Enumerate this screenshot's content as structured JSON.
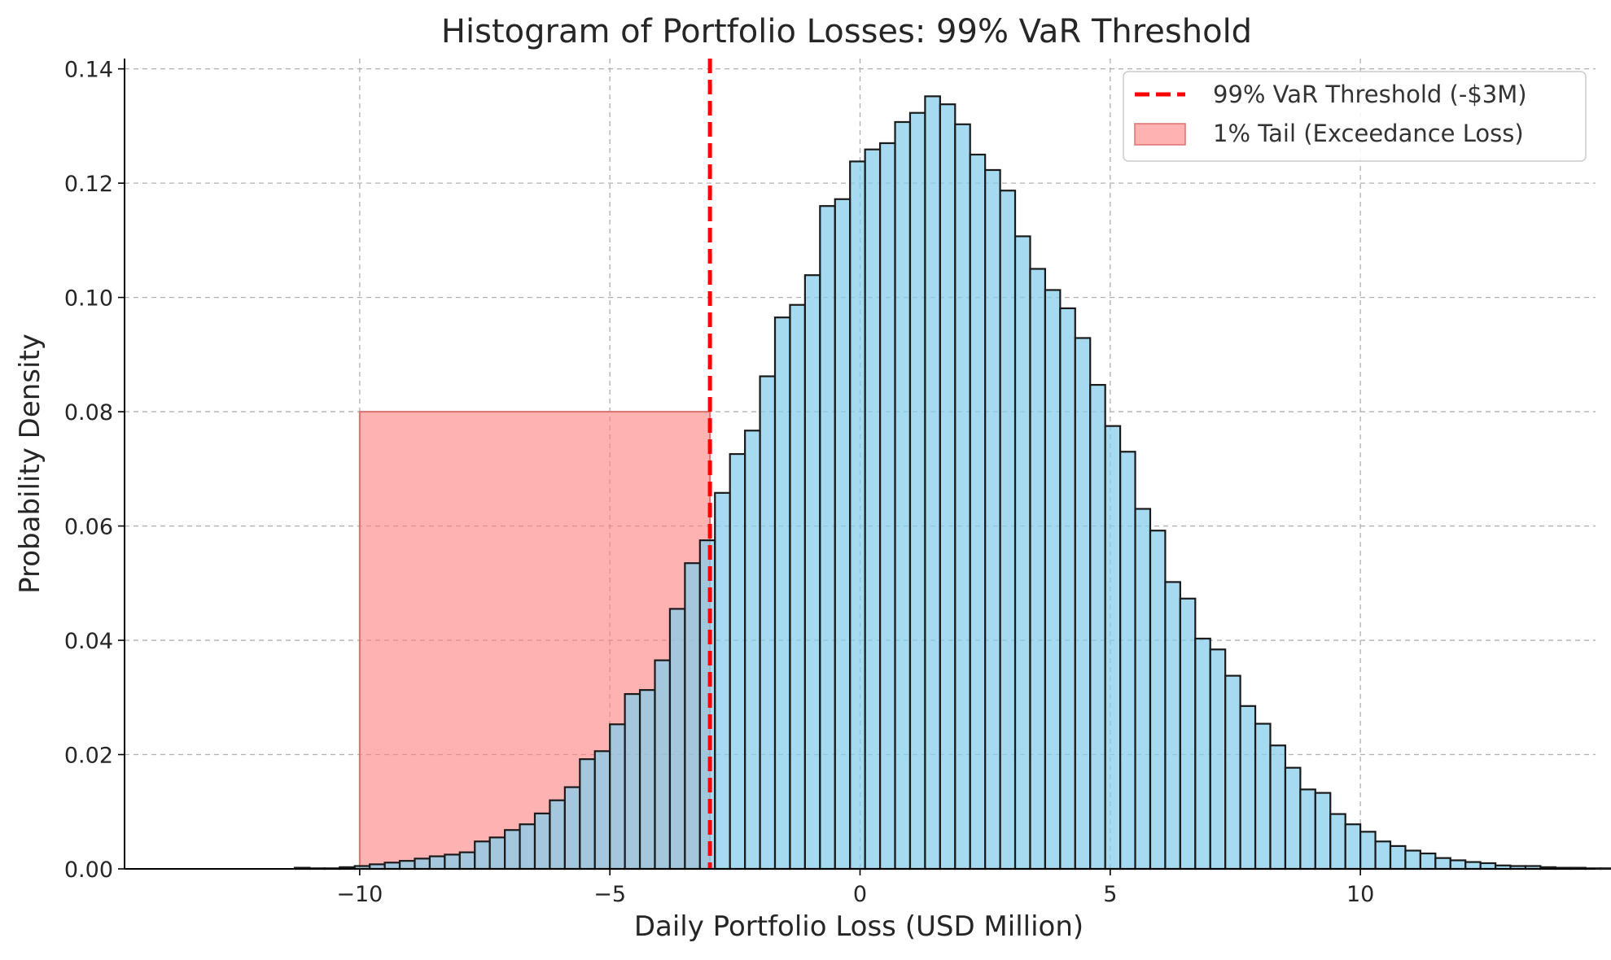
{
  "chart_data": {
    "type": "bar",
    "title": "Histogram of Portfolio Losses: 99% VaR Threshold",
    "xlabel": "Daily Portfolio Loss (USD Million)",
    "ylabel": "Probability Density",
    "xlim": [
      -14.7,
      14.7
    ],
    "ylim": [
      0,
      0.1418
    ],
    "grid": true,
    "legend_position": "top-right",
    "x_ticks": [
      -10,
      -5,
      0,
      5,
      10
    ],
    "x_tick_labels": [
      "−10",
      "−5",
      "0",
      "5",
      "10"
    ],
    "y_ticks": [
      0,
      0.02,
      0.04,
      0.06,
      0.08,
      0.1,
      0.12,
      0.14
    ],
    "y_tick_labels": [
      "0.00",
      "0.02",
      "0.04",
      "0.06",
      "0.08",
      "0.10",
      "0.12",
      "0.14"
    ],
    "bin_width": 0.3,
    "bin_start": -11.3,
    "values": [
      0.0002,
      0.0001,
      0.0001,
      0.0003,
      0.0005,
      0.0008,
      0.0011,
      0.0014,
      0.0018,
      0.0022,
      0.0025,
      0.0029,
      0.0048,
      0.0055,
      0.0068,
      0.0078,
      0.0097,
      0.012,
      0.0143,
      0.0192,
      0.0206,
      0.0253,
      0.0306,
      0.0313,
      0.0365,
      0.0455,
      0.0535,
      0.0575,
      0.0658,
      0.0726,
      0.0767,
      0.0862,
      0.0965,
      0.0987,
      0.1039,
      0.116,
      0.1172,
      0.1238,
      0.1259,
      0.127,
      0.1307,
      0.1323,
      0.1352,
      0.1338,
      0.1303,
      0.125,
      0.1223,
      0.1187,
      0.1107,
      0.105,
      0.1013,
      0.0981,
      0.0929,
      0.0847,
      0.0775,
      0.073,
      0.063,
      0.0592,
      0.0502,
      0.0473,
      0.0403,
      0.0384,
      0.0338,
      0.0285,
      0.0254,
      0.0216,
      0.0177,
      0.0139,
      0.0133,
      0.0096,
      0.0078,
      0.0065,
      0.0048,
      0.004,
      0.0032,
      0.0027,
      0.0019,
      0.0015,
      0.0012,
      0.001,
      0.0006,
      0.0005,
      0.0005,
      0.0003,
      0.0002,
      0.0002,
      0.0001,
      0.0001
    ],
    "var_threshold": -3,
    "tail_region": {
      "x_start": -10,
      "x_end": -3,
      "height": 0.08
    },
    "legend": [
      {
        "label": "99% VaR Threshold (-$3M)",
        "marker": "dashed-line",
        "color": "#ff0000"
      },
      {
        "label": "1% Tail (Exceedance Loss)",
        "marker": "filled-box",
        "color": "#ff7f7f"
      }
    ],
    "colors": {
      "bars": "#87ceeb",
      "bar_edge": "#1a1a1a",
      "var_line": "#ff0000",
      "tail": "#ff7f7f"
    }
  }
}
